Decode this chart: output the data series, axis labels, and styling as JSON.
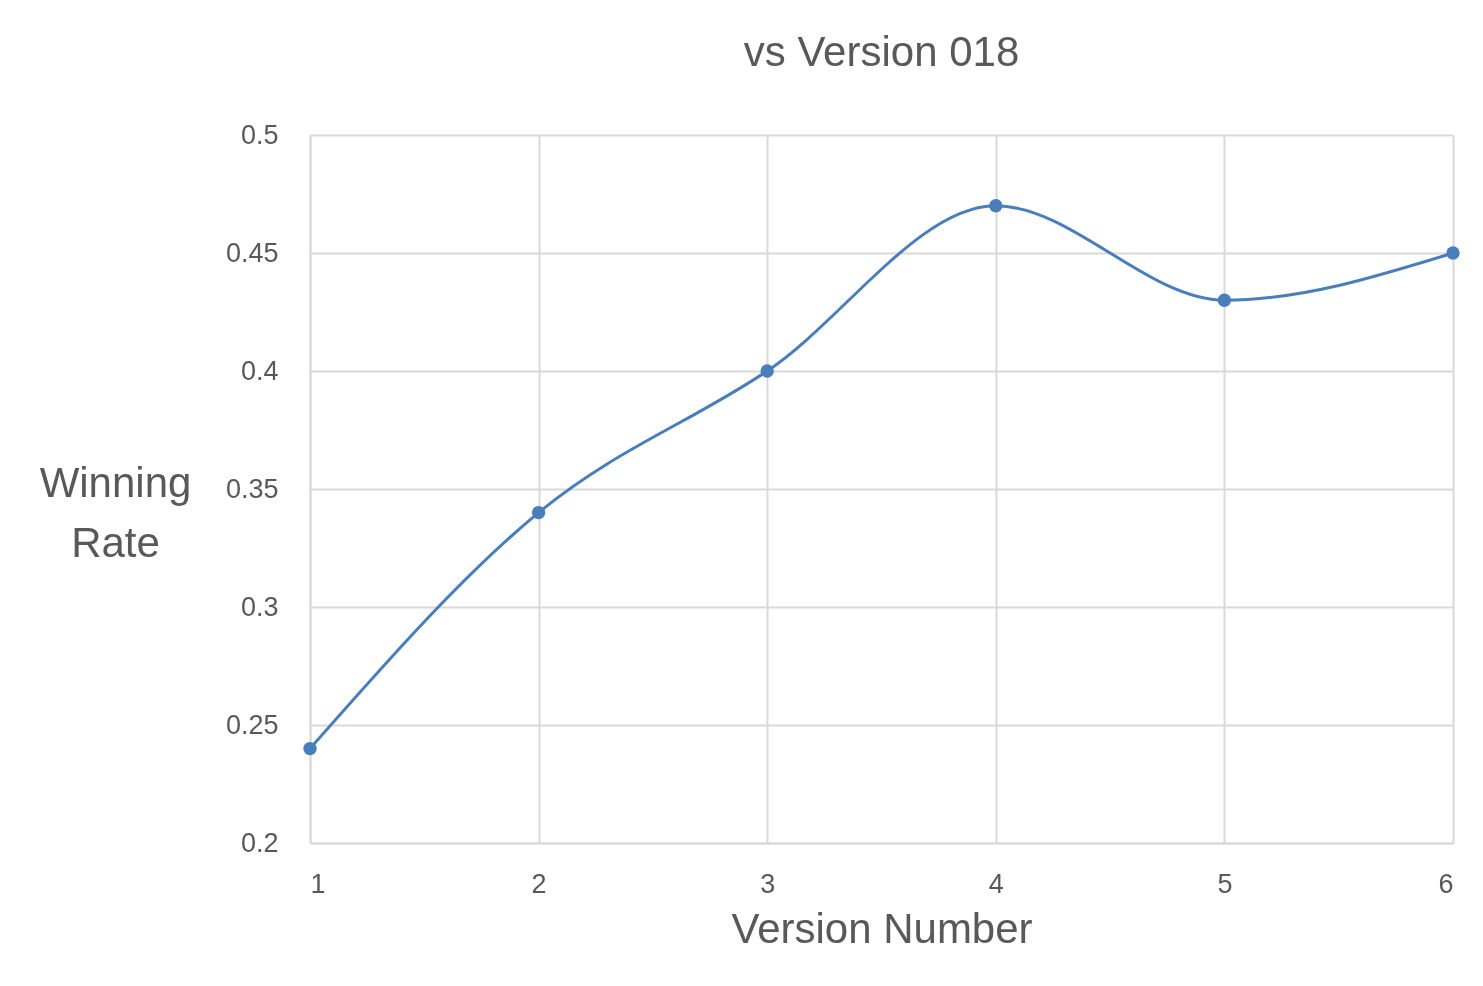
{
  "chart_data": {
    "type": "line",
    "title": "vs Version 018",
    "xlabel": "Version Number",
    "ylabel": "Winning Rate",
    "x": [
      1,
      2,
      3,
      4,
      5,
      6
    ],
    "series": [
      {
        "color": "#4a7ebb",
        "values": [
          0.24,
          0.34,
          0.4,
          0.47,
          0.43,
          0.45
        ]
      }
    ],
    "xlim": [
      1,
      6
    ],
    "xticks": [
      1,
      2,
      3,
      4,
      5,
      6
    ],
    "ylim": [
      0.2,
      0.5
    ],
    "yticks": [
      0.2,
      0.25,
      0.3,
      0.35,
      0.4,
      0.45,
      0.5
    ],
    "grid": true,
    "marker": "circle"
  }
}
